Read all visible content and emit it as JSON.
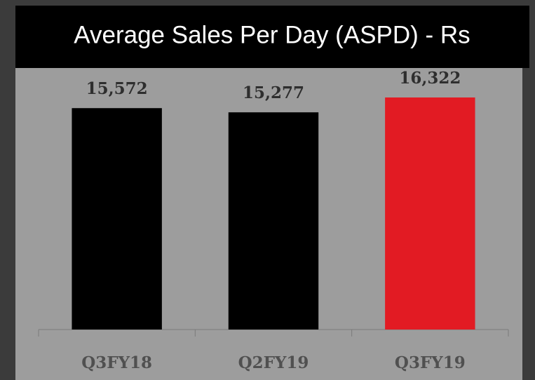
{
  "chart_data": {
    "type": "bar",
    "title": "Average Sales Per Day (ASPD) - Rs",
    "categories": [
      "Q3FY18",
      "Q2FY19",
      "Q3FY19"
    ],
    "values": [
      15572,
      15277,
      16322
    ],
    "value_labels": [
      "15,572",
      "15,277",
      "16,322"
    ],
    "colors": [
      "#000000",
      "#000000",
      "#e21b23"
    ],
    "ylim": [
      0,
      18000
    ]
  }
}
